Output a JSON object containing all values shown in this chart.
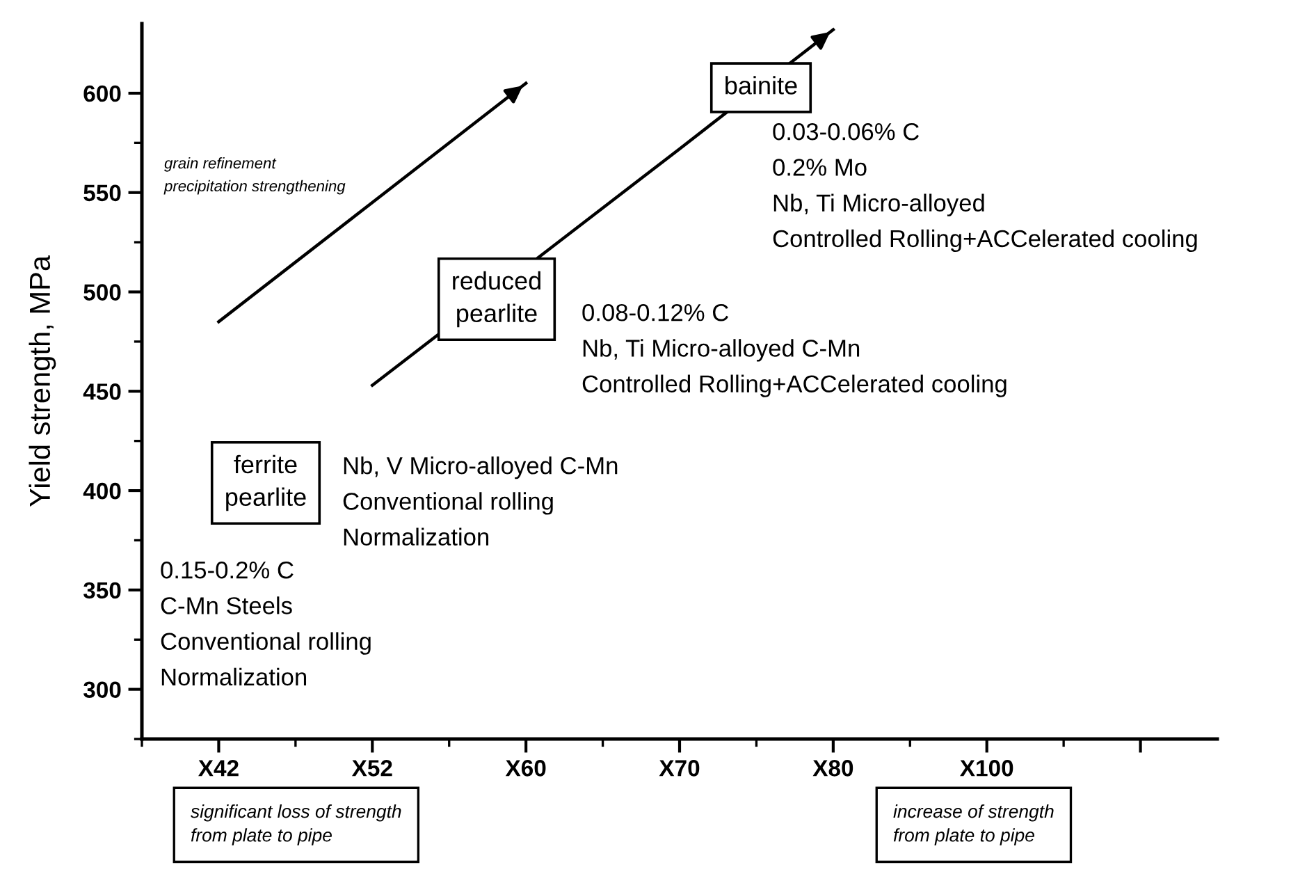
{
  "chart_data": {
    "type": "line",
    "ylabel": "Yield strength, MPa",
    "ylim": [
      275,
      635
    ],
    "categories": [
      "X42",
      "X52",
      "X60",
      "X70",
      "X80",
      "X100",
      null
    ],
    "yticks": [
      300,
      350,
      400,
      450,
      500,
      550,
      600
    ],
    "grid": false,
    "legend": false,
    "marker": "none",
    "line_style": "solid",
    "series": [
      {
        "color": "#000000",
        "values": [
          485,
          545,
          605,
          null,
          null,
          null,
          null
        ]
      },
      {
        "color": "#000000",
        "values": [
          null,
          453,
          null,
          572,
          632,
          null,
          null
        ]
      }
    ],
    "annotations": [
      "ferrite\npearlite",
      "reduced\npearlite",
      "bainite",
      "grain refinement\nprecipitation strengthening",
      "0.03-0.06% C\n0.2% Mo\nNb, Ti Micro-alloyed\nControlled Rolling+ACCelerated cooling",
      "0.08-0.12% C\nNb, Ti Micro-alloyed C-Mn\nControlled Rolling+ACCelerated cooling",
      "Nb, V Micro-alloyed C-Mn\nConventional rolling\nNormalization",
      "0.15-0.2% C\nC-Mn Steels\nConventional rolling\nNormalization",
      "significant loss of strength\nfrom plate to pipe",
      "increase of strength\nfrom plate to pipe"
    ]
  }
}
